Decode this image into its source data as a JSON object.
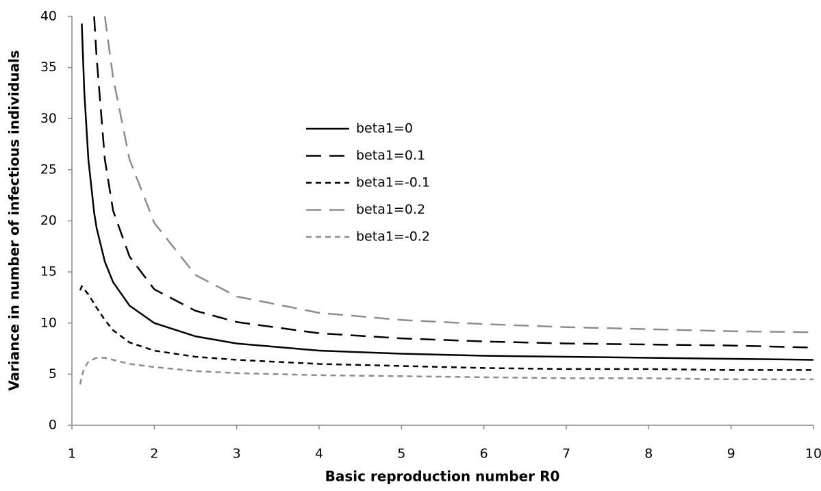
{
  "chart_data": {
    "type": "line",
    "x_label": "Basic reproduction number R0",
    "y_label": "Variance in number of infectious individuals",
    "x": [
      1.1,
      1.12,
      1.15,
      1.2,
      1.27,
      1.3,
      1.4,
      1.5,
      1.7,
      2,
      2.5,
      3,
      4,
      5,
      6,
      7,
      8,
      9,
      10
    ],
    "series": [
      {
        "name": "beta1=0",
        "color": "#000000",
        "dash": "solid",
        "values": [
          null,
          39.3,
          32.7,
          26,
          20.8,
          19.3,
          16,
          14,
          11.7,
          10,
          8.7,
          8,
          7.3,
          7,
          6.8,
          6.7,
          6.6,
          6.5,
          6.4
        ]
      },
      {
        "name": "beta1=0.1",
        "color": "#000000",
        "dash": "long",
        "values": [
          null,
          null,
          null,
          null,
          40,
          36,
          26,
          21,
          16.5,
          13.3,
          11.2,
          10.1,
          9,
          8.5,
          8.2,
          8,
          7.9,
          7.8,
          7.6
        ]
      },
      {
        "name": "beta1=-0.1",
        "color": "#000000",
        "dash": "short",
        "values": [
          13.2,
          13.6,
          13.3,
          12.8,
          11.9,
          11.5,
          10.3,
          9.3,
          8.1,
          7.3,
          6.7,
          6.4,
          6,
          5.8,
          5.6,
          5.5,
          5.5,
          5.4,
          5.4
        ]
      },
      {
        "name": "beta1=0.2",
        "color": "#8c8c8c",
        "dash": "long",
        "values": [
          null,
          null,
          null,
          null,
          null,
          null,
          40,
          34,
          26,
          19.8,
          14.7,
          12.6,
          11,
          10.3,
          9.9,
          9.6,
          9.4,
          9.2,
          9.1
        ]
      },
      {
        "name": "beta1=-0.2",
        "color": "#8c8c8c",
        "dash": "short",
        "values": [
          4,
          4.8,
          5.6,
          6.2,
          6.5,
          6.6,
          6.6,
          6.4,
          6,
          5.7,
          5.3,
          5.1,
          4.9,
          4.8,
          4.7,
          4.6,
          4.6,
          4.5,
          4.5
        ]
      }
    ],
    "xlim": [
      1,
      10
    ],
    "xticks": [
      1,
      2,
      3,
      4,
      5,
      6,
      7,
      8,
      9,
      10
    ],
    "ylim": [
      0,
      40
    ],
    "yticks": [
      0,
      5,
      10,
      15,
      20,
      25,
      30,
      35,
      40
    ],
    "grid": false,
    "legend": "center"
  }
}
